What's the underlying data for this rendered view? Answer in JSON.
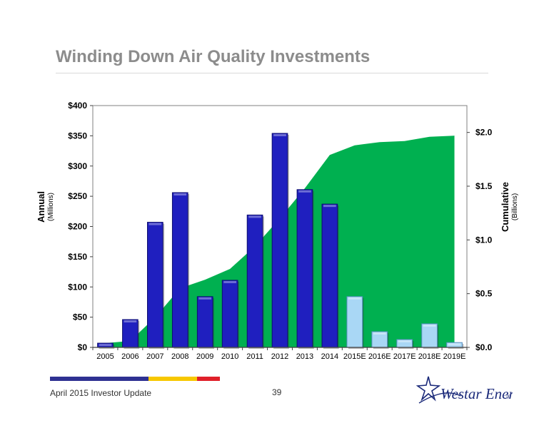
{
  "title": "Winding Down Air Quality Investments",
  "footer": {
    "text": "April 2015 Investor Update",
    "page": "39",
    "stripe_colors": [
      "#2e3192",
      "#f7c800",
      "#e0202a"
    ]
  },
  "logo": {
    "text": "Westar Energy",
    "mark": "®",
    "icon": "star-swoosh-icon"
  },
  "chart_data": {
    "type": "bar",
    "categories": [
      "2005",
      "2006",
      "2007",
      "2008",
      "2009",
      "2010",
      "2011",
      "2012",
      "2013",
      "2014",
      "2015E",
      "2016E",
      "2017E",
      "2018E",
      "2019E"
    ],
    "series": [
      {
        "values": [
          7,
          46,
          207,
          256,
          84,
          111,
          219,
          354,
          261,
          237,
          84,
          26,
          13,
          39,
          8
        ],
        "axis": "left",
        "color": "#1f1fbf",
        "projected_color": "#a9d7f5",
        "projected_from": "2015E"
      },
      {
        "type": "area",
        "values": [
          0.04,
          0.06,
          0.28,
          0.55,
          0.63,
          0.73,
          0.94,
          1.2,
          1.48,
          1.79,
          1.88,
          1.91,
          1.92,
          1.96,
          1.97
        ],
        "axis": "right",
        "color": "#00b050"
      }
    ],
    "ylabel": "Annual",
    "ylabel_sub": "(Millions)",
    "y2label": "Cumulative",
    "y2label_sub": "(Billions)",
    "ylim": [
      0,
      400
    ],
    "y2lim": [
      0,
      2.25
    ],
    "yticks": [
      "$0",
      "$50",
      "$100",
      "$150",
      "$200",
      "$250",
      "$300",
      "$350",
      "$400"
    ],
    "y2ticks": [
      "$0.0",
      "$0.5",
      "$1.0",
      "$1.5",
      "$2.0"
    ],
    "grid": false
  }
}
